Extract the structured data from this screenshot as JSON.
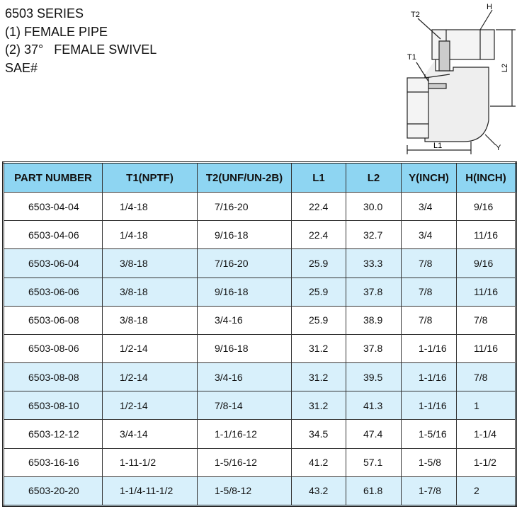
{
  "header": {
    "lines": [
      "6503 SERIES",
      "(1) FEMALE PIPE",
      "(2) 37°   FEMALE SWIVEL",
      "SAE#"
    ]
  },
  "diagram": {
    "labels": {
      "t2": "T2",
      "h": "H",
      "l2": "L2",
      "t1": "T1",
      "l1": "L1",
      "y": "Y"
    }
  },
  "table": {
    "columns": [
      "PART NUMBER",
      "T1(NPTF)",
      "T2(UNF/UN-2B)",
      "L1",
      "L2",
      "Y(INCH)",
      "H(INCH)"
    ],
    "rows": [
      [
        "6503-04-04",
        "1/4-18",
        "7/16-20",
        "22.4",
        "30.0",
        "3/4",
        "9/16"
      ],
      [
        "6503-04-06",
        "1/4-18",
        "9/16-18",
        "22.4",
        "32.7",
        "3/4",
        "11/16"
      ],
      [
        "6503-06-04",
        "3/8-18",
        "7/16-20",
        "25.9",
        "33.3",
        "7/8",
        "9/16"
      ],
      [
        "6503-06-06",
        "3/8-18",
        "9/16-18",
        "25.9",
        "37.8",
        "7/8",
        "11/16"
      ],
      [
        "6503-06-08",
        "3/8-18",
        "3/4-16",
        "25.9",
        "38.9",
        "7/8",
        "7/8"
      ],
      [
        "6503-08-06",
        "1/2-14",
        "9/16-18",
        "31.2",
        "37.8",
        "1-1/16",
        "11/16"
      ],
      [
        "6503-08-08",
        "1/2-14",
        "3/4-16",
        "31.2",
        "39.5",
        "1-1/16",
        "7/8"
      ],
      [
        "6503-08-10",
        "1/2-14",
        "7/8-14",
        "31.2",
        "41.3",
        "1-1/16",
        "1"
      ],
      [
        "6503-12-12",
        "3/4-14",
        "1-1/16-12",
        "34.5",
        "47.4",
        "1-5/16",
        "1-1/4"
      ],
      [
        "6503-16-16",
        "1-11-1/2",
        "1-5/16-12",
        "41.2",
        "57.1",
        "1-5/8",
        "1-1/2"
      ],
      [
        "6503-20-20",
        "1-1/4-11-1/2",
        "1-5/8-12",
        "43.2",
        "61.8",
        "1-7/8",
        "2"
      ]
    ]
  }
}
